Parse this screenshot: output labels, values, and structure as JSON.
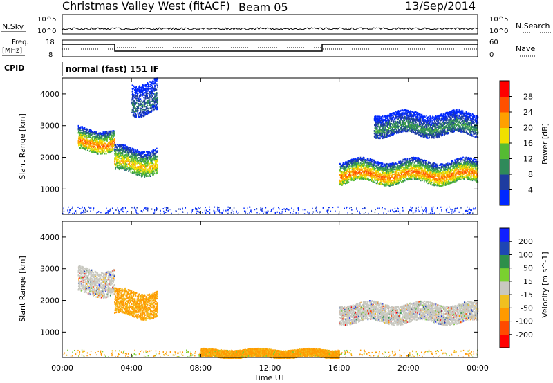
{
  "header": {
    "title": "Christmas Valley West (fitACF)",
    "beam": "Beam 05",
    "date": "13/Sep/2014"
  },
  "strip": {
    "nsky_label": "N.Sky",
    "nsky_ticks": [
      "10^5",
      "10^0"
    ],
    "nsearch_label": "N.Search",
    "nsearch_ticks": [
      "10^5",
      "10^0"
    ],
    "freq_label_line1": "Freq.",
    "freq_label_line2": "[MHz]",
    "freq_ticks": [
      "18",
      "8"
    ],
    "nave_label": "Nave",
    "nave_ticks": [
      "60",
      "0"
    ],
    "cpid_label": "CPID",
    "cpid_text": "normal (fast) 151 IF"
  },
  "colors": {
    "power": [
      "#0028ff",
      "#1e3ca0",
      "#2f8a5a",
      "#55bb33",
      "#f0e000",
      "#ffa000",
      "#ff5000",
      "#ff0000"
    ],
    "velocity": [
      "#ff0000",
      "#ff4a00",
      "#ff9a00",
      "#f0c020",
      "#c8c8c0",
      "#7ad030",
      "#2e8f4a",
      "#1e46b4",
      "#1020ff"
    ],
    "ground_scatter": "#c8c8c0"
  },
  "chart_data": [
    {
      "type": "heatmap",
      "panel": "power",
      "xlabel": "",
      "ylabel": "Slant Range [km]",
      "ylim": [
        200,
        4500
      ],
      "xlim": [
        0,
        24
      ],
      "y_ticks": [
        "1000",
        "2000",
        "3000",
        "4000"
      ],
      "x_ticks": [
        "00:00",
        "04:00",
        "08:00",
        "12:00",
        "16:00",
        "20:00",
        "00:00"
      ],
      "colorbar_label": "Power [dB]",
      "colorbar_ticks": [
        "4",
        "8",
        "12",
        "16",
        "20",
        "24",
        "28"
      ],
      "scatter_regions": [
        {
          "t0": 0.9,
          "t1": 3.0,
          "r_low": 2200,
          "r_high": 2900,
          "peak_db": 28
        },
        {
          "t0": 3.0,
          "t1": 5.5,
          "r_low": 1500,
          "r_high": 2300,
          "peak_db": 24
        },
        {
          "t0": 4.0,
          "t1": 5.5,
          "r_low": 3400,
          "r_high": 4400,
          "peak_db": 12
        },
        {
          "t0": 16.0,
          "t1": 24.0,
          "r_low": 1200,
          "r_high": 1900,
          "peak_db": 28
        },
        {
          "t0": 18.0,
          "t1": 24.0,
          "r_low": 2700,
          "r_high": 3400,
          "peak_db": 14
        }
      ]
    },
    {
      "type": "heatmap",
      "panel": "velocity",
      "xlabel": "Time UT",
      "ylabel": "Slant Range [km]",
      "ylim": [
        200,
        4500
      ],
      "xlim": [
        0,
        24
      ],
      "y_ticks": [
        "1000",
        "2000",
        "3000",
        "4000"
      ],
      "x_ticks": [
        "00:00",
        "04:00",
        "08:00",
        "12:00",
        "16:00",
        "20:00",
        "00:00"
      ],
      "colorbar_label": "Velocity [m s^-1]",
      "colorbar_ticks": [
        "200",
        "100",
        "50",
        "15",
        "-15",
        "-50",
        "-100",
        "-200"
      ],
      "scatter_regions": [
        {
          "t0": 0.9,
          "t1": 3.0,
          "r_low": 2200,
          "r_high": 3000,
          "velocity": 0
        },
        {
          "t0": 3.0,
          "t1": 5.5,
          "r_low": 1500,
          "r_high": 2300,
          "velocity": -30
        },
        {
          "t0": 16.0,
          "t1": 24.0,
          "r_low": 1300,
          "r_high": 1900,
          "velocity": 0
        },
        {
          "t0": 8.0,
          "t1": 16.0,
          "r_low": 200,
          "r_high": 450,
          "velocity": -60
        }
      ]
    }
  ]
}
